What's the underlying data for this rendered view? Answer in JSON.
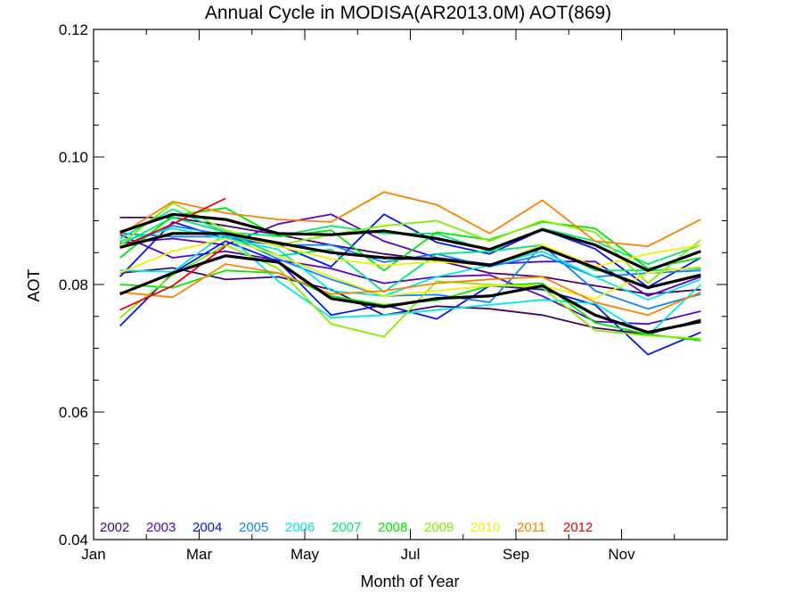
{
  "chart_data": {
    "type": "line",
    "title": "Annual Cycle in MODISA(AR2013.0M) AOT(869)",
    "xlabel": "Month of Year",
    "ylabel": "AOT",
    "x_tick_labels": [
      "Jan",
      "Mar",
      "May",
      "Jul",
      "Sep",
      "Nov"
    ],
    "x_ticks": [
      1,
      3,
      5,
      7,
      9,
      11
    ],
    "xlim": [
      1,
      13
    ],
    "y_ticks": [
      "0.04",
      "0.06",
      "0.08",
      "0.10",
      "0.12"
    ],
    "y_tick_values": [
      0.04,
      0.06,
      0.08,
      0.1,
      0.12
    ],
    "ylim": [
      0.04,
      0.12
    ],
    "x": [
      1.5,
      2.5,
      3.5,
      4.5,
      5.5,
      6.5,
      7.5,
      8.5,
      9.5,
      10.5,
      11.5,
      12.5
    ],
    "series": [
      {
        "name": "2002",
        "color": "#4b006e",
        "values": [
          0.0905,
          0.0905,
          0.0892,
          0.0878,
          0.0862,
          0.0848,
          0.0838,
          0.0818,
          0.0812,
          0.0798,
          0.0785,
          0.0792
        ]
      },
      {
        "name": "2002",
        "color": "#4b006e",
        "values": [
          0.0818,
          0.0826,
          0.0808,
          0.0812,
          0.0792,
          0.0752,
          0.0766,
          0.0762,
          0.0752,
          0.0732,
          0.0722,
          0.0745
        ]
      },
      {
        "name": "2003",
        "color": "#5a00c8",
        "values": [
          0.0865,
          0.0872,
          0.0862,
          0.0895,
          0.091,
          0.0868,
          0.0842,
          0.0832,
          0.0836,
          0.0836,
          0.0782,
          0.0812
        ]
      },
      {
        "name": "2003",
        "color": "#5a00c8",
        "values": [
          0.0878,
          0.0842,
          0.0852,
          0.0838,
          0.0825,
          0.0802,
          0.0812,
          0.0815,
          0.0782,
          0.0742,
          0.0738,
          0.0758
        ]
      },
      {
        "name": "2004",
        "color": "#0018e8",
        "values": [
          0.0735,
          0.0818,
          0.0868,
          0.0836,
          0.0752,
          0.0768,
          0.0746,
          0.0798,
          0.0792,
          0.0768,
          0.069,
          0.0725
        ]
      },
      {
        "name": "2004",
        "color": "#0018e8",
        "values": [
          0.0812,
          0.0898,
          0.0872,
          0.0862,
          0.0828,
          0.091,
          0.0866,
          0.0848,
          0.0886,
          0.0856,
          0.0796,
          0.0842
        ]
      },
      {
        "name": "2005",
        "color": "#0a84ff",
        "values": [
          0.0858,
          0.0892,
          0.0878,
          0.084,
          0.0808,
          0.0782,
          0.0784,
          0.0772,
          0.0862,
          0.079,
          0.0762,
          0.0785
        ]
      },
      {
        "name": "2005",
        "color": "#0a84ff",
        "values": [
          0.088,
          0.0875,
          0.0875,
          0.0862,
          0.0862,
          0.0835,
          0.0848,
          0.0828,
          0.0846,
          0.0812,
          0.0818,
          0.0822
        ]
      },
      {
        "name": "2006",
        "color": "#00e8e8",
        "values": [
          0.0822,
          0.082,
          0.088,
          0.0805,
          0.0748,
          0.0752,
          0.076,
          0.0768,
          0.0776,
          0.077,
          0.072,
          0.08
        ]
      },
      {
        "name": "2006",
        "color": "#00e8e8",
        "values": [
          0.0868,
          0.0888,
          0.0872,
          0.0855,
          0.079,
          0.0782,
          0.0812,
          0.083,
          0.0852,
          0.0812,
          0.0776,
          0.0808
        ]
      },
      {
        "name": "2007",
        "color": "#00e878",
        "values": [
          0.0872,
          0.0918,
          0.0882,
          0.0845,
          0.0855,
          0.0788,
          0.0848,
          0.0852,
          0.0862,
          0.0822,
          0.0822,
          0.0825
        ]
      },
      {
        "name": "2007",
        "color": "#00e878",
        "values": [
          0.0862,
          0.0905,
          0.0882,
          0.0876,
          0.0892,
          0.088,
          0.088,
          0.0852,
          0.0888,
          0.0868,
          0.0832,
          0.0862
        ]
      },
      {
        "name": "2008",
        "color": "#00e800",
        "values": [
          0.0842,
          0.0908,
          0.092,
          0.0875,
          0.0885,
          0.0822,
          0.0882,
          0.087,
          0.0898,
          0.0888,
          0.0825,
          0.0842
        ]
      },
      {
        "name": "2008",
        "color": "#00e800",
        "values": [
          0.08,
          0.0795,
          0.0822,
          0.0818,
          0.0782,
          0.0768,
          0.0775,
          0.0798,
          0.0802,
          0.074,
          0.0722,
          0.0712
        ]
      },
      {
        "name": "2009",
        "color": "#80f000",
        "values": [
          0.0748,
          0.0815,
          0.0862,
          0.0825,
          0.0738,
          0.0718,
          0.0805,
          0.08,
          0.0795,
          0.0728,
          0.072,
          0.0715
        ]
      },
      {
        "name": "2009",
        "color": "#80f000",
        "values": [
          0.0862,
          0.0928,
          0.0885,
          0.0862,
          0.0878,
          0.0892,
          0.09,
          0.0868,
          0.09,
          0.0882,
          0.0802,
          0.087
        ]
      },
      {
        "name": "2010",
        "color": "#f0f000",
        "values": [
          0.0818,
          0.0852,
          0.0872,
          0.0845,
          0.0812,
          0.0782,
          0.079,
          0.0798,
          0.0798,
          0.0778,
          0.0818,
          0.0828
        ]
      },
      {
        "name": "2010",
        "color": "#f0f000",
        "values": [
          0.0858,
          0.0882,
          0.088,
          0.086,
          0.084,
          0.083,
          0.0836,
          0.083,
          0.0862,
          0.0828,
          0.0848,
          0.0862
        ]
      },
      {
        "name": "2011",
        "color": "#ff8000",
        "values": [
          0.0788,
          0.078,
          0.0832,
          0.0818,
          0.0785,
          0.079,
          0.0802,
          0.0808,
          0.0812,
          0.0772,
          0.0752,
          0.0788
        ]
      },
      {
        "name": "2011",
        "color": "#ff8000",
        "values": [
          0.0878,
          0.093,
          0.0912,
          0.0902,
          0.0898,
          0.0945,
          0.0925,
          0.088,
          0.0932,
          0.0868,
          0.086,
          0.0902
        ]
      },
      {
        "name": "2012",
        "color": "#e80000",
        "values": [
          0.076,
          0.0798,
          0.086,
          null,
          null,
          null,
          null,
          null,
          null,
          null,
          null,
          null
        ]
      },
      {
        "name": "2012",
        "color": "#e80000",
        "values": [
          0.0858,
          0.0895,
          0.0935,
          null,
          null,
          null,
          null,
          null,
          null,
          null,
          null,
          null
        ]
      },
      {
        "color": "#000000",
        "values": [
          0.0882,
          0.091,
          0.0902,
          0.088,
          0.0878,
          0.0884,
          0.0872,
          0.0855,
          0.0886,
          0.0862,
          0.0822,
          0.0852
        ]
      },
      {
        "color": "#000000",
        "values": [
          0.0858,
          0.088,
          0.088,
          0.0865,
          0.085,
          0.0842,
          0.084,
          0.083,
          0.0858,
          0.0826,
          0.0795,
          0.0815
        ]
      },
      {
        "color": "#000000",
        "values": [
          0.0785,
          0.0818,
          0.0845,
          0.0835,
          0.0778,
          0.0765,
          0.0778,
          0.0782,
          0.0798,
          0.0752,
          0.0725,
          0.0742
        ]
      }
    ],
    "legend": {
      "placement": "bottom-left",
      "entries": [
        {
          "label": "2002",
          "color": "#4b006e"
        },
        {
          "label": "2003",
          "color": "#5a00c8"
        },
        {
          "label": "2004",
          "color": "#0018e8"
        },
        {
          "label": "2005",
          "color": "#0a84ff"
        },
        {
          "label": "2006",
          "color": "#00e8e8"
        },
        {
          "label": "2007",
          "color": "#00e878"
        },
        {
          "label": "2008",
          "color": "#00e800"
        },
        {
          "label": "2009",
          "color": "#80f000"
        },
        {
          "label": "2010",
          "color": "#f0f000"
        },
        {
          "label": "2011",
          "color": "#ff8000"
        },
        {
          "label": "2012",
          "color": "#e80000"
        }
      ]
    },
    "grid": false
  }
}
